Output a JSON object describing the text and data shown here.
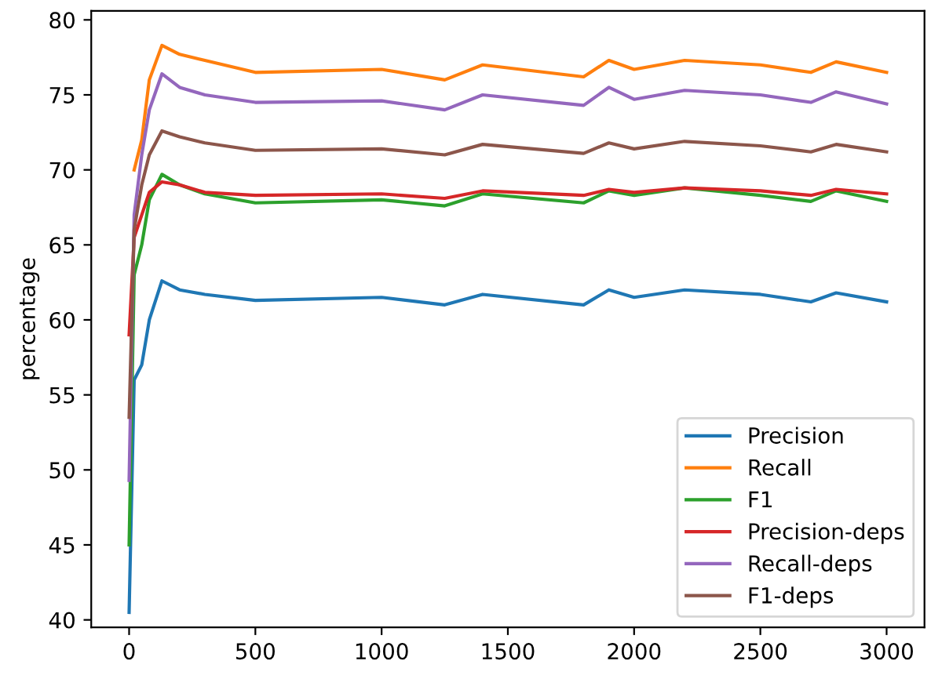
{
  "chart_data": {
    "type": "line",
    "ylabel": "percentage",
    "x": [
      0,
      20,
      50,
      80,
      130,
      200,
      300,
      500,
      1000,
      1250,
      1400,
      1800,
      1900,
      2000,
      2200,
      2500,
      2700,
      2800,
      3000
    ],
    "series": [
      {
        "name": "Precision",
        "color": "#1f77b4",
        "values": [
          40.5,
          56,
          57,
          60,
          62.6,
          62,
          61.7,
          61.3,
          61.5,
          61,
          61.7,
          61,
          62,
          61.5,
          62,
          61.7,
          61.2,
          61.8,
          61.2
        ]
      },
      {
        "name": "Recall",
        "color": "#ff7f0e",
        "values": [
          null,
          70,
          72,
          76,
          78.3,
          77.7,
          77.3,
          76.5,
          76.7,
          76,
          77,
          76.2,
          77.3,
          76.7,
          77.3,
          77,
          76.5,
          77.2,
          76.5
        ]
      },
      {
        "name": "F1",
        "color": "#2ca02c",
        "values": [
          45,
          63,
          65,
          68,
          69.7,
          69,
          68.4,
          67.8,
          68,
          67.6,
          68.4,
          67.8,
          68.6,
          68.3,
          68.8,
          68.3,
          67.9,
          68.6,
          67.9
        ]
      },
      {
        "name": "Precision-deps",
        "color": "#d62728",
        "values": [
          59,
          65.5,
          67,
          68.5,
          69.2,
          69,
          68.5,
          68.3,
          68.4,
          68.1,
          68.6,
          68.3,
          68.7,
          68.5,
          68.8,
          68.6,
          68.3,
          68.7,
          68.4
        ]
      },
      {
        "name": "Recall-deps",
        "color": "#9467bd",
        "values": [
          49.3,
          67,
          71,
          74,
          76.4,
          75.5,
          75,
          74.5,
          74.6,
          74,
          75,
          74.3,
          75.5,
          74.7,
          75.3,
          75,
          74.5,
          75.2,
          74.4
        ]
      },
      {
        "name": "F1-deps",
        "color": "#8c564b",
        "values": [
          53.5,
          66,
          69,
          71,
          72.6,
          72.2,
          71.8,
          71.3,
          71.4,
          71,
          71.7,
          71.1,
          71.8,
          71.4,
          71.9,
          71.6,
          71.2,
          71.7,
          71.2
        ]
      }
    ],
    "xlim": [
      -150,
      3150
    ],
    "ylim": [
      39.5,
      80.6
    ],
    "xticks": [
      0,
      500,
      1000,
      1500,
      2000,
      2500,
      3000
    ],
    "yticks": [
      40,
      45,
      50,
      55,
      60,
      65,
      70,
      75,
      80
    ],
    "grid": false,
    "legend": "bottom right",
    "line_style": "solid"
  }
}
